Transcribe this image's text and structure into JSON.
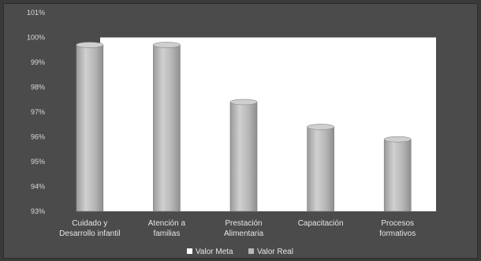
{
  "chart_data": {
    "type": "bar",
    "categories": [
      [
        "Cuidado y",
        "Desarrollo infantil"
      ],
      [
        "Atención a",
        "familias"
      ],
      [
        "Prestación",
        "Alimentaria"
      ],
      [
        "Capacitación"
      ],
      [
        "Procesos",
        "formativos"
      ]
    ],
    "series": [
      {
        "name": "Valor Meta",
        "values": [
          100,
          100,
          100,
          100,
          100
        ],
        "color": "#ffffff"
      },
      {
        "name": "Valor Real",
        "values": [
          99.7,
          99.7,
          97.4,
          96.4,
          95.9
        ],
        "color": "#b8b8b8"
      }
    ],
    "y_ticks": [
      "93%",
      "94%",
      "95%",
      "96%",
      "97%",
      "98%",
      "99%",
      "100%",
      "101%"
    ],
    "ylim": [
      93,
      101
    ],
    "grid": false,
    "legend_position": "bottom",
    "title": "",
    "xlabel": "",
    "ylabel": ""
  }
}
